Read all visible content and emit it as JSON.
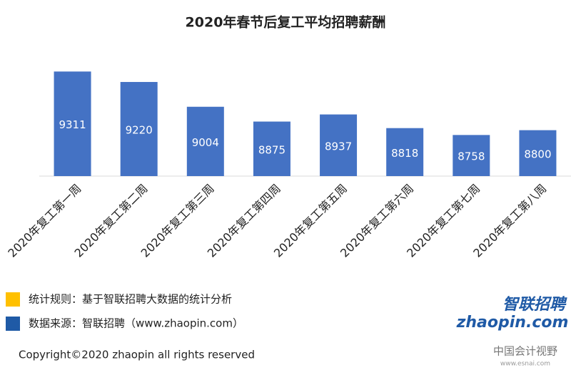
{
  "chart_data": {
    "type": "bar",
    "title": "2020年春节后复工平均招聘薪酬",
    "categories": [
      "2020年复工第一周",
      "2020年复工第二周",
      "2020年复工第三周",
      "2020年复工第四周",
      "2020年复工第五周",
      "2020年复工第六周",
      "2020年复工第七周",
      "2020年复工第八周"
    ],
    "values": [
      9311,
      9220,
      9004,
      8875,
      8937,
      8818,
      8758,
      8800
    ],
    "color": "#4472c4",
    "ylim": [
      8400,
      9400
    ],
    "grid": false
  },
  "notes": [
    {
      "text": "统计规则：基于智联招聘大数据的统计分析",
      "color": "#ffc000"
    },
    {
      "text": "数据来源：智联招聘（www.zhaopin.com）",
      "color": "#1f5aa6"
    }
  ],
  "footer": "Copyright©2020 zhaopin all rights reserved",
  "logo": {
    "name": "智联招聘",
    "site": "zhaopin.com"
  },
  "watermark": {
    "name": "中国会计视野",
    "site": "www.esnai.com"
  }
}
